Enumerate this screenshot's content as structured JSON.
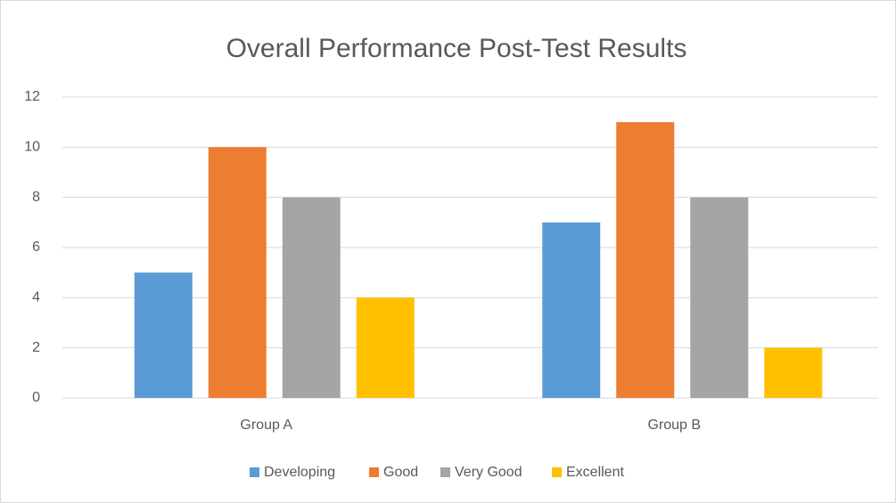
{
  "chart_data": {
    "type": "bar",
    "title": "Overall Performance Post-Test Results",
    "categories": [
      "Group A",
      "Group B"
    ],
    "series": [
      {
        "name": "Developing",
        "color": "#5b9bd5",
        "values": [
          5,
          7
        ]
      },
      {
        "name": "Good",
        "color": "#ed7d31",
        "values": [
          10,
          11
        ]
      },
      {
        "name": "Very Good",
        "color": "#a5a5a5",
        "values": [
          8,
          8
        ]
      },
      {
        "name": "Excellent",
        "color": "#ffc000",
        "values": [
          4,
          2
        ]
      }
    ],
    "ylim": [
      0,
      12
    ],
    "yticks": [
      0,
      2,
      4,
      6,
      8,
      10,
      12
    ],
    "grid": true,
    "legend": "bottom"
  }
}
